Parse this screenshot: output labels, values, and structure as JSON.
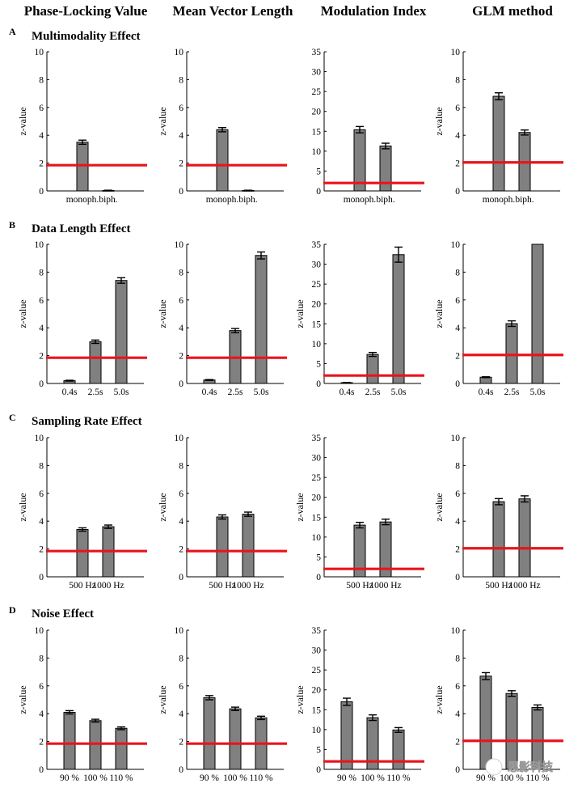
{
  "column_titles": [
    "Phase-Locking Value",
    "Mean Vector Length",
    "Modulation Index",
    "GLM method"
  ],
  "row_titles": [
    {
      "letter": "A",
      "title": "Multimodality Effect"
    },
    {
      "letter": "B",
      "title": "Data Length Effect"
    },
    {
      "letter": "C",
      "title": "Sampling Rate Effect"
    },
    {
      "letter": "D",
      "title": "Noise Effect"
    }
  ],
  "watermark": "思影科技",
  "chart_data": [
    {
      "type": "bar",
      "row": "A",
      "column": "Phase-Locking Value",
      "categories": [
        "monoph.",
        "biph."
      ],
      "values": [
        3.5,
        0.03
      ],
      "errors": [
        0.15,
        0.02
      ],
      "ylabel": "z-value",
      "ylim": [
        0,
        10
      ],
      "yticks": [
        0,
        2,
        4,
        6,
        8,
        10
      ],
      "threshold": 1.85
    },
    {
      "type": "bar",
      "row": "A",
      "column": "Mean Vector Length",
      "categories": [
        "monoph.",
        "biph."
      ],
      "values": [
        4.4,
        0.03
      ],
      "errors": [
        0.15,
        0.02
      ],
      "ylabel": "z-value",
      "ylim": [
        0,
        10
      ],
      "yticks": [
        0,
        2,
        4,
        6,
        8,
        10
      ],
      "threshold": 1.85
    },
    {
      "type": "bar",
      "row": "A",
      "column": "Modulation Index",
      "categories": [
        "monoph.",
        "biph."
      ],
      "values": [
        15.4,
        11.3
      ],
      "errors": [
        0.8,
        0.7
      ],
      "ylabel": "",
      "ylim": [
        0,
        35
      ],
      "yticks": [
        0,
        5,
        10,
        15,
        20,
        25,
        30,
        35
      ],
      "threshold": 2.0
    },
    {
      "type": "bar",
      "row": "A",
      "column": "GLM method",
      "categories": [
        "monoph.",
        "biph."
      ],
      "values": [
        6.8,
        4.2
      ],
      "errors": [
        0.25,
        0.18
      ],
      "ylabel": "z-value",
      "ylim": [
        0,
        10
      ],
      "yticks": [
        0,
        2,
        4,
        6,
        8,
        10
      ],
      "threshold": 2.05
    },
    {
      "type": "bar",
      "row": "B",
      "column": "Phase-Locking Value",
      "categories": [
        "0.4s",
        "2.5s",
        "5.0s"
      ],
      "values": [
        0.2,
        3.0,
        7.4
      ],
      "errors": [
        0.03,
        0.12,
        0.2
      ],
      "ylabel": "z-value",
      "ylim": [
        0,
        10
      ],
      "yticks": [
        0,
        2,
        4,
        6,
        8,
        10
      ],
      "threshold": 1.85
    },
    {
      "type": "bar",
      "row": "B",
      "column": "Mean Vector Length",
      "categories": [
        "0.4s",
        "2.5s",
        "5.0s"
      ],
      "values": [
        0.25,
        3.8,
        9.2
      ],
      "errors": [
        0.03,
        0.15,
        0.25
      ],
      "ylabel": "z-value",
      "ylim": [
        0,
        10
      ],
      "yticks": [
        0,
        2,
        4,
        6,
        8,
        10
      ],
      "threshold": 1.85
    },
    {
      "type": "bar",
      "row": "B",
      "column": "Modulation Index",
      "categories": [
        "0.4s",
        "2.5s",
        "5.0s"
      ],
      "values": [
        0.2,
        7.3,
        32.4
      ],
      "errors": [
        0.05,
        0.5,
        1.9
      ],
      "ylabel": "z-value",
      "ylim": [
        0,
        35
      ],
      "yticks": [
        0,
        5,
        10,
        15,
        20,
        25,
        30,
        35
      ],
      "threshold": 2.0
    },
    {
      "type": "bar",
      "row": "B",
      "column": "GLM method",
      "categories": [
        "0.4s",
        "2.5s",
        "5.0s"
      ],
      "values": [
        0.45,
        4.3,
        10
      ],
      "errors": [
        0.03,
        0.2,
        0
      ],
      "ylabel": "z-value",
      "ylim": [
        0,
        10
      ],
      "yticks": [
        0,
        2,
        4,
        6,
        8,
        10
      ],
      "threshold": 2.05
    },
    {
      "type": "bar",
      "row": "C",
      "column": "Phase-Locking Value",
      "categories": [
        "500 Hz",
        "1000 Hz"
      ],
      "values": [
        3.4,
        3.6
      ],
      "errors": [
        0.12,
        0.12
      ],
      "ylabel": "z-value",
      "ylim": [
        0,
        10
      ],
      "yticks": [
        0,
        2,
        4,
        6,
        8,
        10
      ],
      "threshold": 1.85
    },
    {
      "type": "bar",
      "row": "C",
      "column": "Mean Vector Length",
      "categories": [
        "500 Hz",
        "1000 Hz"
      ],
      "values": [
        4.3,
        4.5
      ],
      "errors": [
        0.15,
        0.15
      ],
      "ylabel": "z-value",
      "ylim": [
        0,
        10
      ],
      "yticks": [
        0,
        2,
        4,
        6,
        8,
        10
      ],
      "threshold": 1.85
    },
    {
      "type": "bar",
      "row": "C",
      "column": "Modulation Index",
      "categories": [
        "500 Hz",
        "1000 Hz"
      ],
      "values": [
        13.0,
        13.8
      ],
      "errors": [
        0.7,
        0.7
      ],
      "ylabel": "z-value",
      "ylim": [
        0,
        35
      ],
      "yticks": [
        0,
        5,
        10,
        15,
        20,
        25,
        30,
        35
      ],
      "threshold": 2.0
    },
    {
      "type": "bar",
      "row": "C",
      "column": "GLM method",
      "categories": [
        "500 Hz",
        "1000 Hz"
      ],
      "values": [
        5.4,
        5.6
      ],
      "errors": [
        0.22,
        0.22
      ],
      "ylabel": "z-value",
      "ylim": [
        0,
        10
      ],
      "yticks": [
        0,
        2,
        4,
        6,
        8,
        10
      ],
      "threshold": 2.05
    },
    {
      "type": "bar",
      "row": "D",
      "column": "Phase-Locking Value",
      "categories": [
        "90 %",
        "100 %",
        "110 %"
      ],
      "values": [
        4.1,
        3.5,
        2.95
      ],
      "errors": [
        0.12,
        0.1,
        0.1
      ],
      "ylabel": "z-value",
      "ylim": [
        0,
        10
      ],
      "yticks": [
        0,
        2,
        4,
        6,
        8,
        10
      ],
      "threshold": 1.85
    },
    {
      "type": "bar",
      "row": "D",
      "column": "Mean Vector Length",
      "categories": [
        "90 %",
        "100 %",
        "110 %"
      ],
      "values": [
        5.15,
        4.35,
        3.7
      ],
      "errors": [
        0.15,
        0.12,
        0.12
      ],
      "ylabel": "z-value",
      "ylim": [
        0,
        10
      ],
      "yticks": [
        0,
        2,
        4,
        6,
        8,
        10
      ],
      "threshold": 1.85
    },
    {
      "type": "bar",
      "row": "D",
      "column": "Modulation Index",
      "categories": [
        "90 %",
        "100 %",
        "110 %"
      ],
      "values": [
        17.0,
        13.0,
        9.9
      ],
      "errors": [
        0.9,
        0.7,
        0.6
      ],
      "ylabel": "z-value",
      "ylim": [
        0,
        35
      ],
      "yticks": [
        0,
        5,
        10,
        15,
        20,
        25,
        30,
        35
      ],
      "threshold": 2.0
    },
    {
      "type": "bar",
      "row": "D",
      "column": "GLM method",
      "categories": [
        "90 %",
        "100 %",
        "110 %"
      ],
      "values": [
        6.7,
        5.45,
        4.45
      ],
      "errors": [
        0.25,
        0.2,
        0.18
      ],
      "ylabel": "z-value",
      "ylim": [
        0,
        10
      ],
      "yticks": [
        0,
        2,
        4,
        6,
        8,
        10
      ],
      "threshold": 2.05
    }
  ]
}
